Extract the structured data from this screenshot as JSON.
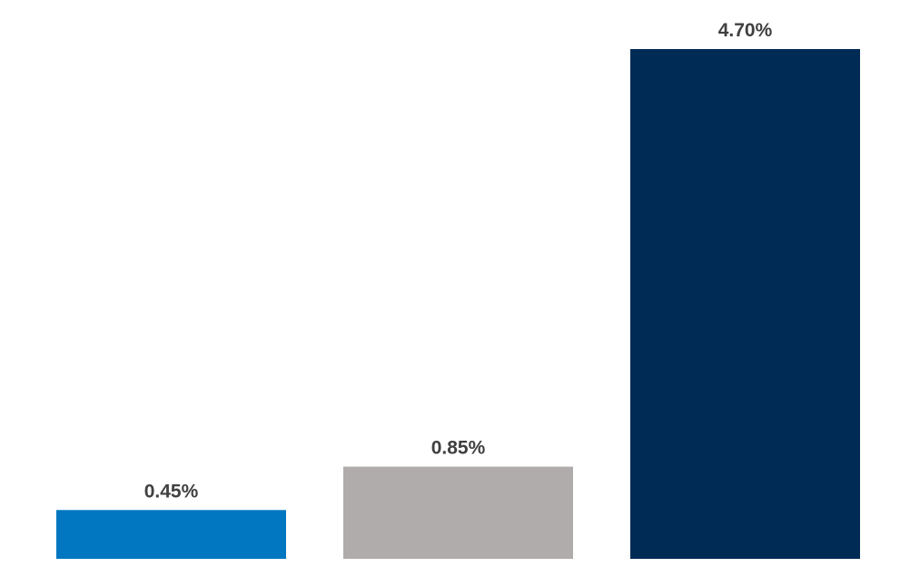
{
  "chart_data": {
    "type": "bar",
    "categories": [
      null,
      null,
      null
    ],
    "values": [
      0.45,
      0.85,
      4.7
    ],
    "value_labels": [
      "0.45%",
      "0.85%",
      "4.70%"
    ],
    "colors": [
      "#0077c0",
      "#b0acab",
      "#002b55"
    ]
  }
}
